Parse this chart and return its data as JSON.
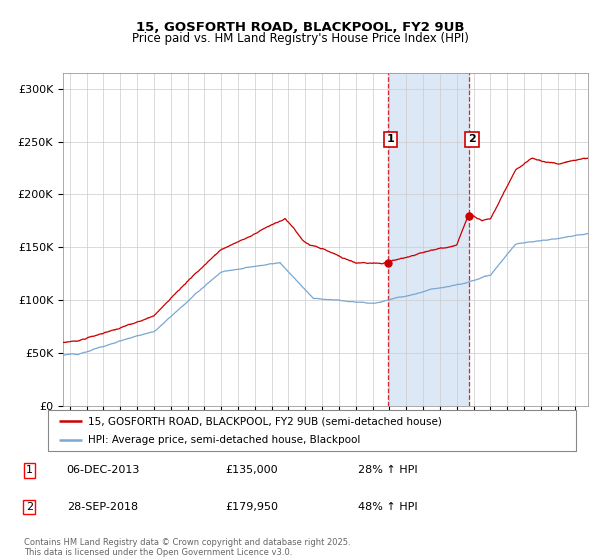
{
  "title_line1": "15, GOSFORTH ROAD, BLACKPOOL, FY2 9UB",
  "title_line2": "Price paid vs. HM Land Registry's House Price Index (HPI)",
  "ylabel_ticks": [
    "£0",
    "£50K",
    "£100K",
    "£150K",
    "£200K",
    "£250K",
    "£300K"
  ],
  "ytick_values": [
    0,
    50000,
    100000,
    150000,
    200000,
    250000,
    300000
  ],
  "ylim": [
    0,
    315000
  ],
  "xlim_start": 1994.6,
  "xlim_end": 2025.8,
  "sale1_date": 2013.92,
  "sale1_price": 135000,
  "sale1_label": "1",
  "sale2_date": 2018.75,
  "sale2_price": 179950,
  "sale2_label": "2",
  "red_color": "#cc0000",
  "blue_color": "#7aa8d2",
  "shade_color": "#dce8f5",
  "legend_line1": "15, GOSFORTH ROAD, BLACKPOOL, FY2 9UB (semi-detached house)",
  "legend_line2": "HPI: Average price, semi-detached house, Blackpool",
  "table_row1": [
    "1",
    "06-DEC-2013",
    "£135,000",
    "28% ↑ HPI"
  ],
  "table_row2": [
    "2",
    "28-SEP-2018",
    "£179,950",
    "48% ↑ HPI"
  ],
  "footer": "Contains HM Land Registry data © Crown copyright and database right 2025.\nThis data is licensed under the Open Government Licence v3.0."
}
